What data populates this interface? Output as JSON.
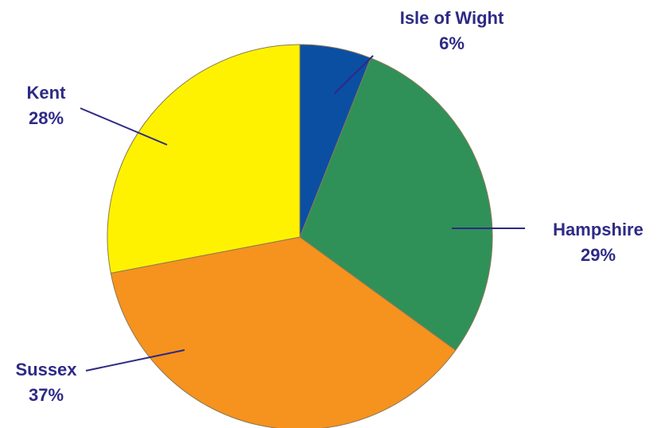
{
  "chart_data": {
    "type": "pie",
    "title": "",
    "slices": [
      {
        "label": "Isle of Wight",
        "value": 6,
        "pct_label": "6%",
        "color": "#0b4fa3"
      },
      {
        "label": "Hampshire",
        "value": 29,
        "pct_label": "29%",
        "color": "#2f9158"
      },
      {
        "label": "Sussex",
        "value": 37,
        "pct_label": "37%",
        "color": "#f6921e"
      },
      {
        "label": "Kent",
        "value": 28,
        "pct_label": "28%",
        "color": "#fff200"
      }
    ],
    "label_color": "#2e2a86",
    "leader_line_color": "#2e2a86"
  }
}
